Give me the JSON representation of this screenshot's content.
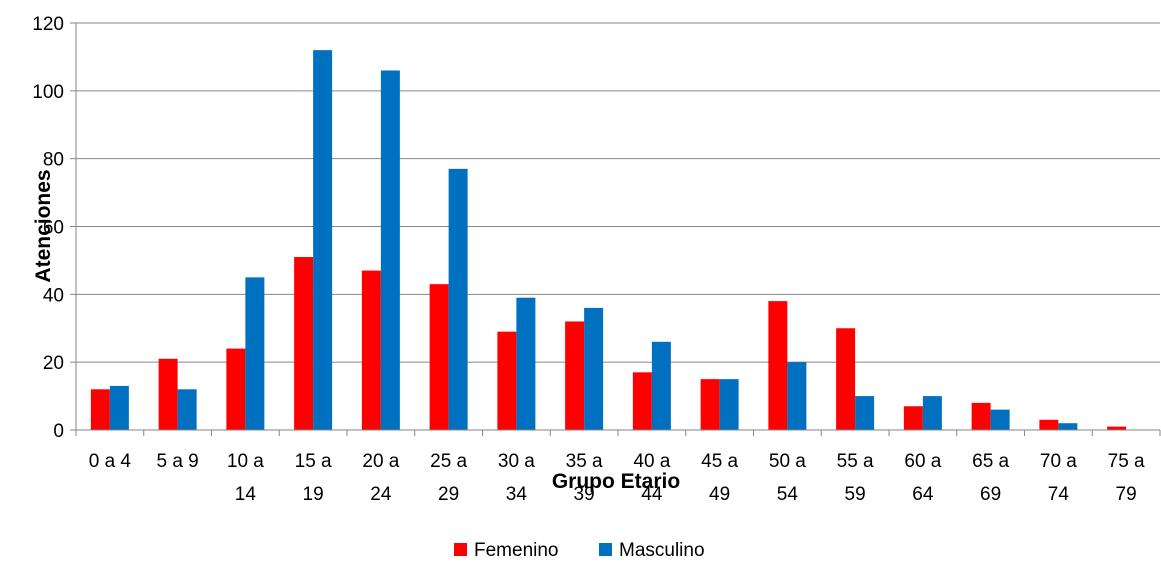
{
  "chart_data": {
    "type": "bar",
    "xlabel": "Grupo Etario",
    "ylabel": "Atenciones",
    "ylim": [
      0,
      120
    ],
    "yticks": [
      0,
      20,
      40,
      60,
      80,
      100,
      120
    ],
    "grid": true,
    "legend_position": "bottom",
    "categories": [
      [
        "0 a 4"
      ],
      [
        "5 a 9"
      ],
      [
        "10 a",
        "14"
      ],
      [
        "15 a",
        "19"
      ],
      [
        "20 a",
        "24"
      ],
      [
        "25 a",
        "29"
      ],
      [
        "30 a",
        "34"
      ],
      [
        "35 a",
        "39"
      ],
      [
        "40 a",
        "44"
      ],
      [
        "45 a",
        "49"
      ],
      [
        "50 a",
        "54"
      ],
      [
        "55 a",
        "59"
      ],
      [
        "60 a",
        "64"
      ],
      [
        "65 a",
        "69"
      ],
      [
        "70 a",
        "74"
      ],
      [
        "75 a",
        "79"
      ]
    ],
    "series": [
      {
        "name": "Femenino",
        "color": "#ff0000",
        "values": [
          12,
          21,
          24,
          51,
          47,
          43,
          29,
          32,
          17,
          15,
          38,
          30,
          7,
          8,
          3,
          1
        ]
      },
      {
        "name": "Masculino",
        "color": "#0070c0",
        "values": [
          13,
          12,
          45,
          112,
          106,
          77,
          39,
          36,
          26,
          15,
          20,
          10,
          10,
          6,
          2,
          0
        ]
      }
    ]
  }
}
